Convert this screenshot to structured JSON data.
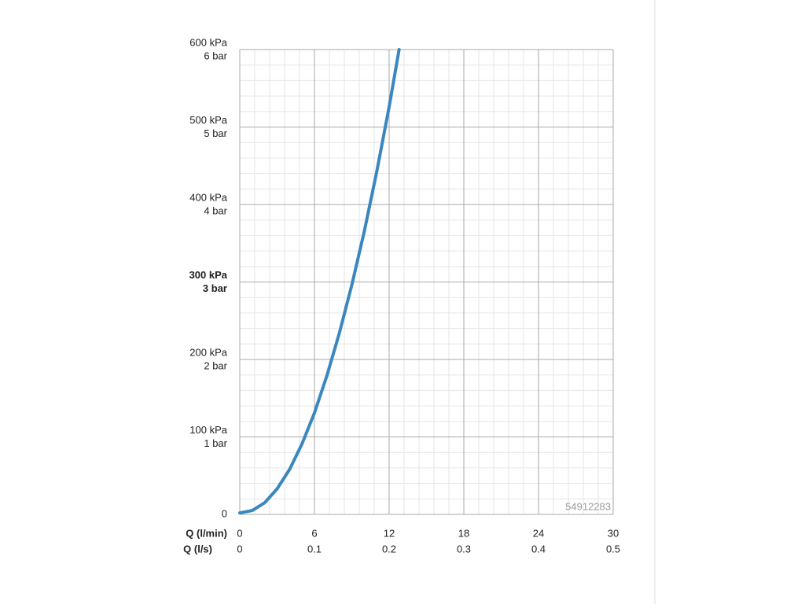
{
  "chart_data": {
    "type": "line",
    "x": [
      0,
      1,
      2,
      3,
      4,
      5,
      6,
      7,
      8,
      9,
      10,
      11,
      12,
      12.8
    ],
    "series": [
      {
        "color": "#3a87c0",
        "values": [
          2,
          5,
          15,
          33,
          58,
          91,
          131,
          179,
          234,
          296,
          365,
          442,
          526,
          600
        ]
      }
    ],
    "xlim": [
      0,
      30
    ],
    "xticks": [
      0,
      6,
      12,
      18,
      24,
      30
    ],
    "xlabel": "Q (l/min)",
    "x2lim": [
      0,
      0.5
    ],
    "x2ticks": [
      0,
      0.1,
      0.2,
      0.3,
      0.4,
      0.5
    ],
    "x2label": "Q (l/s)",
    "ylim": [
      0,
      600
    ],
    "yticks": [
      0,
      {
        "value": 100,
        "label": "100 kPa"
      },
      {
        "value": 200,
        "label": "200 kPa"
      },
      {
        "value": 300,
        "label": "300 kPa"
      },
      {
        "value": 400,
        "label": "400 kPa"
      },
      {
        "value": 500,
        "label": "500 kPa"
      },
      {
        "value": 600,
        "label": "600 kPa"
      }
    ],
    "ytick_secondary_labels": [
      null,
      "1 bar",
      "2 bar",
      "3 bar",
      "4 bar",
      "5 bar",
      "6 bar"
    ],
    "emphasized_ytick": 300,
    "grid": true,
    "minor_grid_divisions": 5,
    "annotation": "54912283"
  }
}
